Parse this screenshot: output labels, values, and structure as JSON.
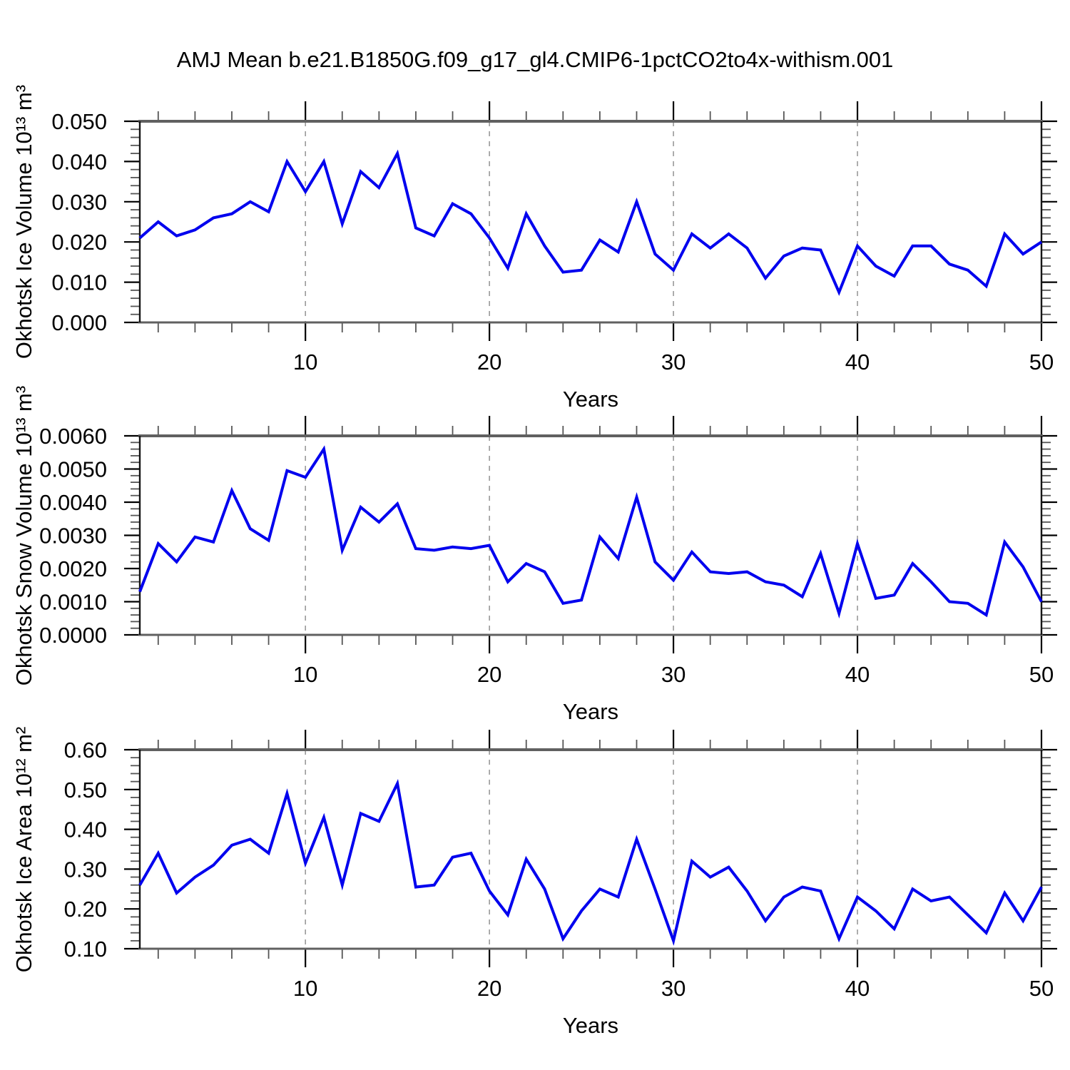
{
  "title": "AMJ Mean b.e21.B1850G.f09_g17_gl4.CMIP6-1pctCO2to4x-withism.001",
  "chart_data": [
    {
      "type": "line",
      "name": "okhotsk-ice-volume",
      "ylabel": "Okhotsk Ice Volume 10¹³ m³",
      "xlabel": "Years",
      "xlim": [
        1,
        50
      ],
      "ylim": [
        0,
        0.05
      ],
      "x_ticks": [
        10,
        20,
        30,
        40,
        50
      ],
      "x_minor_step": 2,
      "grid_x": [
        10,
        20,
        30,
        40
      ],
      "grid_style": "dashed",
      "legend": "none",
      "ytick_labels": [
        "0.000",
        "0.010",
        "0.020",
        "0.030",
        "0.040",
        "0.050"
      ],
      "ytick_values": [
        0,
        0.01,
        0.02,
        0.03,
        0.04,
        0.05
      ],
      "y_minor_step": 0.002,
      "line_color": "#0000EE",
      "x": [
        1,
        2,
        3,
        4,
        5,
        6,
        7,
        8,
        9,
        10,
        11,
        12,
        13,
        14,
        15,
        16,
        17,
        18,
        19,
        20,
        21,
        22,
        23,
        24,
        25,
        26,
        27,
        28,
        29,
        30,
        31,
        32,
        33,
        34,
        35,
        36,
        37,
        38,
        39,
        40,
        41,
        42,
        43,
        44,
        45,
        46,
        47,
        48,
        49,
        50
      ],
      "values": [
        0.021,
        0.025,
        0.0215,
        0.023,
        0.026,
        0.027,
        0.03,
        0.0275,
        0.04,
        0.0325,
        0.04,
        0.0245,
        0.0375,
        0.0335,
        0.042,
        0.0235,
        0.0215,
        0.0295,
        0.027,
        0.021,
        0.0135,
        0.027,
        0.019,
        0.0125,
        0.013,
        0.0205,
        0.0175,
        0.03,
        0.017,
        0.013,
        0.022,
        0.0185,
        0.022,
        0.0185,
        0.011,
        0.0165,
        0.0185,
        0.018,
        0.0075,
        0.019,
        0.014,
        0.0115,
        0.019,
        0.019,
        0.0145,
        0.013,
        0.009,
        0.022,
        0.017,
        0.02
      ]
    },
    {
      "type": "line",
      "name": "okhotsk-snow-volume",
      "ylabel": "Okhotsk Snow Volume 10¹³ m³",
      "xlabel": "Years",
      "xlim": [
        1,
        50
      ],
      "ylim": [
        0,
        0.006
      ],
      "x_ticks": [
        10,
        20,
        30,
        40,
        50
      ],
      "x_minor_step": 2,
      "grid_x": [
        10,
        20,
        30,
        40
      ],
      "grid_style": "dashed",
      "legend": "none",
      "ytick_labels": [
        "0.0000",
        "0.0010",
        "0.0020",
        "0.0030",
        "0.0040",
        "0.0050",
        "0.0060"
      ],
      "ytick_values": [
        0,
        0.001,
        0.002,
        0.003,
        0.004,
        0.005,
        0.006
      ],
      "y_minor_step": 0.0002,
      "line_color": "#0000EE",
      "x": [
        1,
        2,
        3,
        4,
        5,
        6,
        7,
        8,
        9,
        10,
        11,
        12,
        13,
        14,
        15,
        16,
        17,
        18,
        19,
        20,
        21,
        22,
        23,
        24,
        25,
        26,
        27,
        28,
        29,
        30,
        31,
        32,
        33,
        34,
        35,
        36,
        37,
        38,
        39,
        40,
        41,
        42,
        43,
        44,
        45,
        46,
        47,
        48,
        49,
        50
      ],
      "values": [
        0.0013,
        0.00275,
        0.0022,
        0.00295,
        0.0028,
        0.00435,
        0.0032,
        0.00285,
        0.00495,
        0.00475,
        0.0056,
        0.00255,
        0.00385,
        0.0034,
        0.00395,
        0.0026,
        0.00255,
        0.00265,
        0.0026,
        0.0027,
        0.0016,
        0.00215,
        0.0019,
        0.00095,
        0.00105,
        0.00295,
        0.0023,
        0.00415,
        0.0022,
        0.00165,
        0.0025,
        0.0019,
        0.00185,
        0.0019,
        0.0016,
        0.0015,
        0.00115,
        0.00245,
        0.00065,
        0.00275,
        0.0011,
        0.0012,
        0.00215,
        0.0016,
        0.001,
        0.00095,
        0.0006,
        0.0028,
        0.00205,
        0.001
      ]
    },
    {
      "type": "line",
      "name": "okhotsk-ice-area",
      "ylabel": "Okhotsk Ice Area 10¹² m²",
      "xlabel": "Years",
      "xlim": [
        1,
        50
      ],
      "ylim": [
        0.1,
        0.6
      ],
      "x_ticks": [
        10,
        20,
        30,
        40,
        50
      ],
      "x_minor_step": 2,
      "grid_x": [
        10,
        20,
        30,
        40
      ],
      "grid_style": "dashed",
      "legend": "none",
      "ytick_labels": [
        "0.10",
        "0.20",
        "0.30",
        "0.40",
        "0.50",
        "0.60"
      ],
      "ytick_values": [
        0.1,
        0.2,
        0.3,
        0.4,
        0.5,
        0.6
      ],
      "y_minor_step": 0.02,
      "line_color": "#0000EE",
      "x": [
        1,
        2,
        3,
        4,
        5,
        6,
        7,
        8,
        9,
        10,
        11,
        12,
        13,
        14,
        15,
        16,
        17,
        18,
        19,
        20,
        21,
        22,
        23,
        24,
        25,
        26,
        27,
        28,
        29,
        30,
        31,
        32,
        33,
        34,
        35,
        36,
        37,
        38,
        39,
        40,
        41,
        42,
        43,
        44,
        45,
        46,
        47,
        48,
        49,
        50
      ],
      "values": [
        0.26,
        0.34,
        0.24,
        0.28,
        0.31,
        0.36,
        0.375,
        0.34,
        0.49,
        0.315,
        0.43,
        0.26,
        0.44,
        0.42,
        0.515,
        0.255,
        0.26,
        0.33,
        0.34,
        0.245,
        0.185,
        0.325,
        0.25,
        0.125,
        0.195,
        0.25,
        0.23,
        0.375,
        0.25,
        0.12,
        0.32,
        0.28,
        0.305,
        0.245,
        0.17,
        0.23,
        0.255,
        0.245,
        0.125,
        0.23,
        0.195,
        0.15,
        0.25,
        0.22,
        0.23,
        0.185,
        0.14,
        0.24,
        0.17,
        0.255
      ]
    }
  ],
  "colors": {
    "line": "#0000EE",
    "frame_gray": "#606060",
    "axis_black": "#151515",
    "minor_tick": "#555555",
    "gridline": "#999999"
  }
}
